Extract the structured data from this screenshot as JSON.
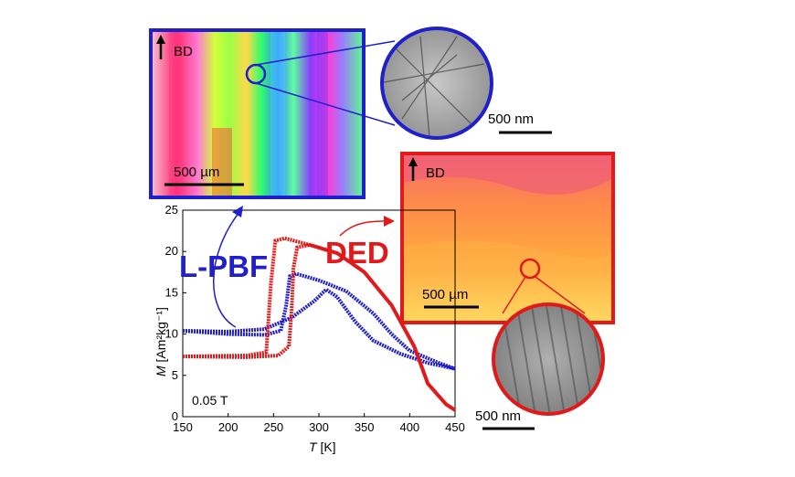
{
  "chart_data": {
    "type": "line",
    "xlabel_italic": "T",
    "xlabel_unit": " [K]",
    "ylabel_italic": "M",
    "ylabel_unit": " [Am²kg⁻¹]",
    "xlim": [
      150,
      450
    ],
    "ylim": [
      0,
      25
    ],
    "x_ticks": [
      "150",
      "200",
      "250",
      "300",
      "350",
      "400",
      "450"
    ],
    "y_ticks": [
      "0",
      "5",
      "10",
      "15",
      "20",
      "25"
    ],
    "field_label": "0.05 T",
    "series": [
      {
        "name": "L-PBF",
        "color": "#1f1fcc",
        "heating": [
          [
            150,
            10.4
          ],
          [
            200,
            10.3
          ],
          [
            240,
            10.6
          ],
          [
            270,
            12.0
          ],
          [
            295,
            14.0
          ],
          [
            308,
            15.4
          ],
          [
            320,
            14.5
          ],
          [
            340,
            11.5
          ],
          [
            360,
            9.2
          ],
          [
            390,
            7.6
          ],
          [
            420,
            6.5
          ],
          [
            450,
            5.8
          ]
        ],
        "cooling": [
          [
            150,
            10.4
          ],
          [
            200,
            10.0
          ],
          [
            240,
            9.9
          ],
          [
            258,
            10.4
          ],
          [
            264,
            13.5
          ],
          [
            268,
            17.0
          ],
          [
            275,
            17.3
          ],
          [
            300,
            16.5
          ],
          [
            330,
            15.2
          ],
          [
            360,
            12.5
          ],
          [
            380,
            10.0
          ],
          [
            400,
            8.0
          ],
          [
            430,
            6.6
          ],
          [
            450,
            5.8
          ]
        ]
      },
      {
        "name": "DED",
        "color": "#e01a1a",
        "heating": [
          [
            150,
            7.3
          ],
          [
            220,
            7.2
          ],
          [
            255,
            7.4
          ],
          [
            267,
            8.5
          ],
          [
            270,
            13.0
          ],
          [
            272,
            18.0
          ],
          [
            276,
            20.5
          ],
          [
            290,
            20.8
          ],
          [
            320,
            19.8
          ],
          [
            350,
            17.5
          ],
          [
            380,
            13.5
          ],
          [
            405,
            8.5
          ],
          [
            420,
            4.0
          ],
          [
            440,
            1.5
          ],
          [
            450,
            0.8
          ]
        ],
        "cooling": [
          [
            150,
            7.3
          ],
          [
            220,
            7.4
          ],
          [
            242,
            7.8
          ],
          [
            247,
            16.0
          ],
          [
            252,
            21.3
          ],
          [
            262,
            21.6
          ],
          [
            290,
            20.8
          ],
          [
            320,
            19.8
          ],
          [
            350,
            17.5
          ],
          [
            380,
            13.5
          ],
          [
            405,
            8.5
          ],
          [
            420,
            4.0
          ],
          [
            440,
            1.5
          ],
          [
            450,
            0.8
          ]
        ]
      }
    ]
  },
  "labels": {
    "lpbf": "L-PBF",
    "ded": "DED",
    "bd": "BD",
    "scale_um": "500 µm",
    "scale_nm": "500 nm"
  },
  "colors": {
    "blue_frame": "#1f1fcc",
    "red_frame": "#e01a1a"
  }
}
